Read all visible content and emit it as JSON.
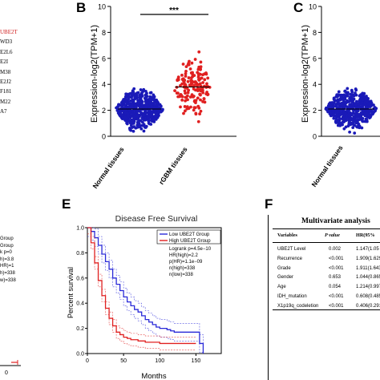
{
  "panels": {
    "b": "B",
    "c": "C",
    "e": "E",
    "f": "F"
  },
  "gene_list": [
    "UBE2T",
    "WD3",
    "E2L6",
    "E2I",
    "M38",
    "E2J2",
    "F181",
    "M22",
    "A7"
  ],
  "panel_a_fragment": {
    "legend": [
      "Group",
      "Group",
      "k p=0",
      "h)=3.8",
      "HR)=1",
      "h)=338",
      "w)=338"
    ],
    "axis_tick": "0"
  },
  "panel_b": {
    "significance": "***"
  },
  "panel_e": {
    "legend_title": "Low UBE2T Group",
    "legend_high": "High UBE2T Group",
    "stats": [
      "Logrank p=4.5e−10",
      "HR(high)=2.2",
      "p(HR)=1.1e−09",
      "n(high)=338",
      "n(low)=338"
    ]
  },
  "panel_f": {
    "title": "Multivariate analysis",
    "headers": {
      "variables": "Variables",
      "pvalue": "P value",
      "hr": "HR(95% "
    },
    "rows": [
      {
        "variable": "UBE2T Level",
        "p": "0.002",
        "hr": "1.147(1.05"
      },
      {
        "variable": "Recurrence",
        "p": "<0.001",
        "hr": "1.909(1.629"
      },
      {
        "variable": "Grade",
        "p": "<0.001",
        "hr": "1.911(1.643"
      },
      {
        "variable": "Gender",
        "p": "0.653",
        "hr": "1.044(0.865"
      },
      {
        "variable": "Age",
        "p": "0.054",
        "hr": "1.214(0.997"
      },
      {
        "variable": "IDH_mutation",
        "p": "<0.001",
        "hr": "0.608(0.485"
      },
      {
        "variable": "X1p19q_codeletion",
        "p": "<0.001",
        "hr": "0.406(0.291"
      }
    ]
  },
  "colors": {
    "blue": "#1a1ab8",
    "red": "#e02020",
    "gene_highlight": "#d02020",
    "low_line": "#2a2ad8",
    "high_line": "#e02020"
  },
  "chart_data": [
    {
      "type": "scatter",
      "panel": "B",
      "ylabel": "Expression-log2(TPM+1)",
      "ylim": [
        0,
        10
      ],
      "yticks": [
        0,
        2,
        4,
        6,
        8,
        10
      ],
      "categories": [
        "Normal tissues",
        "rGBM tissues"
      ],
      "series": [
        {
          "category": "Normal tissues",
          "center": 2.1,
          "min": 0.0,
          "max": 4.3,
          "n": 1152,
          "color": "#1a1ab8"
        },
        {
          "category": "rGBM tissues",
          "center": 3.8,
          "min": 0.5,
          "max": 7.2,
          "n": 156,
          "color": "#e02020"
        }
      ],
      "significance": "***"
    },
    {
      "type": "scatter",
      "panel": "C",
      "ylabel": "Expression-log2(TPM+1)",
      "ylim": [
        0,
        10
      ],
      "yticks": [
        0,
        2,
        4,
        6,
        8,
        10
      ],
      "categories": [
        "Normal tissues"
      ],
      "series": [
        {
          "category": "Normal tissues",
          "center": 2.1,
          "min": 0.0,
          "max": 4.3,
          "n": 1152,
          "color": "#1a1ab8"
        }
      ]
    },
    {
      "type": "line",
      "panel": "E",
      "title": "Disease Free Survival",
      "xlabel": "Months",
      "ylabel": "Percent survival",
      "xlim": [
        0,
        185
      ],
      "ylim": [
        0,
        1.0
      ],
      "xticks": [
        0,
        50,
        100,
        150
      ],
      "yticks": [
        0.0,
        0.2,
        0.4,
        0.6,
        0.8,
        1.0
      ],
      "series": [
        {
          "name": "Low UBE2T Group",
          "color": "#2a2ad8",
          "x": [
            0,
            5,
            10,
            15,
            20,
            25,
            30,
            35,
            40,
            45,
            50,
            55,
            60,
            65,
            70,
            75,
            80,
            85,
            90,
            95,
            100,
            105,
            110,
            115,
            120,
            125,
            130,
            135,
            140,
            145,
            150,
            155,
            160
          ],
          "y": [
            1.0,
            0.97,
            0.92,
            0.86,
            0.79,
            0.73,
            0.67,
            0.6,
            0.55,
            0.5,
            0.45,
            0.41,
            0.38,
            0.35,
            0.33,
            0.3,
            0.27,
            0.25,
            0.23,
            0.21,
            0.2,
            0.2,
            0.19,
            0.18,
            0.17,
            0.17,
            0.17,
            0.17,
            0.17,
            0.17,
            0.17,
            0.08,
            0.0
          ]
        },
        {
          "name": "High UBE2T Group",
          "color": "#e02020",
          "x": [
            0,
            5,
            10,
            15,
            20,
            25,
            30,
            35,
            40,
            45,
            50,
            55,
            60,
            70,
            80,
            90,
            100,
            110,
            120,
            130,
            140,
            150
          ],
          "y": [
            1.0,
            0.88,
            0.72,
            0.58,
            0.46,
            0.36,
            0.28,
            0.22,
            0.17,
            0.15,
            0.13,
            0.12,
            0.11,
            0.1,
            0.09,
            0.09,
            0.08,
            0.08,
            0.08,
            0.08,
            0.08,
            0.08
          ]
        }
      ]
    }
  ]
}
